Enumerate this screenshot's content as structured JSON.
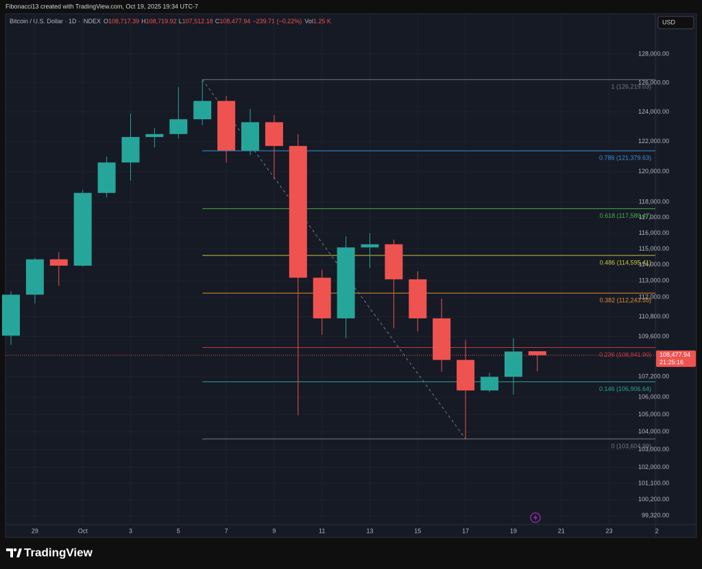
{
  "header": {
    "attribution": "Fibonacci13 created with TradingView.com, Oct 19, 2025 19:34 UTC-7",
    "symbol": "Bitcoin / U.S. Dollar · 1D · INDEX",
    "open_label": "O",
    "open": "108,717.39",
    "high_label": "H",
    "high": "108,719.92",
    "low_label": "L",
    "low": "107,512.18",
    "close_label": "C",
    "close": "108,477.94",
    "change": "−239.71 (−0.22%)",
    "volume_label": "Vol",
    "volume": "1.25 K",
    "currency": "USD"
  },
  "footer": {
    "brand": "TradingView"
  },
  "chart_data": {
    "type": "candlestick",
    "log_scale": true,
    "grid": true,
    "up_color": "#26a69a",
    "down_color": "#ef5350",
    "categories": [
      null,
      "29",
      null,
      "Oct",
      null,
      "3",
      null,
      "5",
      null,
      "7",
      null,
      "9",
      null,
      "11",
      null,
      "13",
      null,
      "15",
      null,
      "17",
      null,
      "19",
      null,
      "21",
      null,
      "23",
      null,
      "2"
    ],
    "open": [
      109650,
      112150,
      114350,
      113950,
      118600,
      120600,
      122300,
      122500,
      123500,
      124750,
      121400,
      123300,
      121700,
      113200,
      110700,
      115100,
      115300,
      113100,
      110700,
      108200,
      106400,
      107200,
      108717.39,
      null,
      null,
      null,
      null,
      null
    ],
    "high": [
      112350,
      114450,
      114800,
      118800,
      121000,
      123900,
      122900,
      125700,
      126200,
      125100,
      124200,
      123800,
      122500,
      113700,
      115800,
      116000,
      115600,
      113600,
      111900,
      109400,
      107450,
      109500,
      108719.92,
      null,
      null,
      null,
      null,
      null
    ],
    "low": [
      109100,
      111600,
      112700,
      113900,
      118300,
      119400,
      121600,
      122200,
      123100,
      120600,
      121100,
      119500,
      104950,
      109700,
      109500,
      113800,
      110100,
      109900,
      107500,
      103600,
      106300,
      106150,
      107512.18,
      null,
      null,
      null,
      null,
      null
    ],
    "close": [
      112150,
      114350,
      113950,
      118600,
      120600,
      122300,
      122500,
      123500,
      124750,
      121400,
      123300,
      121700,
      113200,
      110700,
      115100,
      115300,
      113100,
      110700,
      108200,
      106400,
      107200,
      108700,
      108477.94,
      null,
      null,
      null,
      null,
      null
    ],
    "ylim": [
      98880,
      129700
    ],
    "yticks": [
      {
        "value": 128000,
        "label": "128,000.00"
      },
      {
        "value": 126000,
        "label": "126,000.00"
      },
      {
        "value": 124000,
        "label": "124,000.00"
      },
      {
        "value": 122000,
        "label": "122,000.00"
      },
      {
        "value": 120000,
        "label": "120,000.00"
      },
      {
        "value": 118000,
        "label": "118,000.00"
      },
      {
        "value": 117000,
        "label": "117,000.00"
      },
      {
        "value": 116000,
        "label": "116,000.00"
      },
      {
        "value": 115000,
        "label": "115,000.00"
      },
      {
        "value": 114000,
        "label": "114,000.00"
      },
      {
        "value": 113000,
        "label": "113,000.00"
      },
      {
        "value": 112000,
        "label": "112,000.00"
      },
      {
        "value": 110800,
        "label": "110,800.00"
      },
      {
        "value": 109600,
        "label": "109,600.00"
      },
      {
        "value": 107200,
        "label": "107,200.00"
      },
      {
        "value": 106000,
        "label": "106,000.00"
      },
      {
        "value": 105000,
        "label": "105,000.00"
      },
      {
        "value": 104000,
        "label": "104,000.00"
      },
      {
        "value": 103000,
        "label": "103,000.00"
      },
      {
        "value": 102000,
        "label": "102,000.00"
      },
      {
        "value": 101100,
        "label": "101,100.00"
      },
      {
        "value": 100200,
        "label": "100,200.00"
      },
      {
        "value": 99320,
        "label": "99,320.00"
      }
    ],
    "fib_levels": [
      {
        "value": 126219.03,
        "label": "1 (126,219.03)",
        "color": "#787b86"
      },
      {
        "value": 121379.63,
        "label": "0.786 (121,379.63)",
        "color": "#3d8fd0"
      },
      {
        "value": 117580.47,
        "label": "0.618 (117,580.47)",
        "color": "#4caf50"
      },
      {
        "value": 114595.41,
        "label": "0.486 (114,595.41)",
        "color": "#c9c53a"
      },
      {
        "value": 112243.55,
        "label": "0.382 (112,243.55)",
        "color": "#e0902a"
      },
      {
        "value": 108941.9,
        "label": "0.236 (108,941.90)",
        "color": "#c0393f"
      },
      {
        "value": 106906.64,
        "label": "0.146 (106,906.64)",
        "color": "#26a69a"
      },
      {
        "value": 103604.99,
        "label": "0 (103,604.99)",
        "color": "#787b86"
      }
    ],
    "last_price": {
      "value": 108477.94,
      "label": "108,477.94"
    },
    "countdown": "21:25:16"
  }
}
